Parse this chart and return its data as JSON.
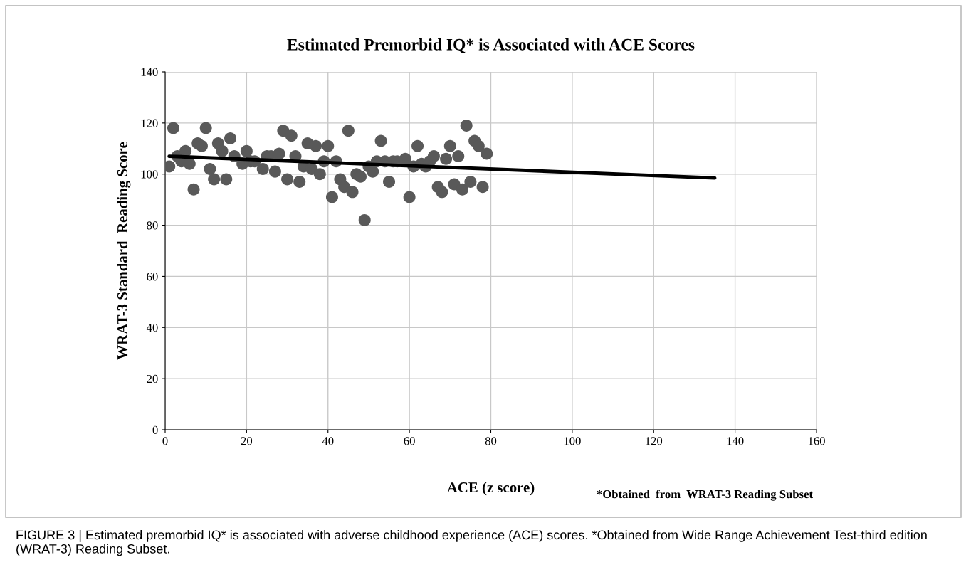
{
  "chart_data": {
    "type": "scatter",
    "title": "Estimated Premorbid IQ* is Associated with ACE Scores",
    "xlabel": "ACE (z score)",
    "ylabel": "WRAT-3 Standard  Reading Score",
    "annotations": [
      "*Obtained  from  WRAT-3 Reading Subset",
      "FIGURE 3 | Estimated premorbid IQ* is associated with adverse childhood experience (ACE) scores. *Obtained from Wide Range Achievement Test-third edition (WRAT-3) Reading Subset."
    ],
    "series": [
      {
        "color": "#595959",
        "marker": "circle",
        "x": [
          1,
          2,
          3,
          4,
          5,
          6,
          7,
          8,
          9,
          10,
          11,
          12,
          13,
          14,
          15,
          16,
          17,
          19,
          20,
          21,
          22,
          24,
          25,
          26,
          27,
          28,
          29,
          30,
          31,
          32,
          33,
          34,
          35,
          36,
          37,
          38,
          39,
          40,
          41,
          42,
          43,
          44,
          45,
          46,
          47,
          48,
          49,
          50,
          51,
          52,
          53,
          54,
          55,
          56,
          57,
          59,
          60,
          61,
          62,
          63,
          64,
          65,
          66,
          67,
          68,
          69,
          70,
          71,
          72,
          73,
          74,
          75,
          76,
          77,
          78,
          79
        ],
        "values": [
          103,
          118,
          107,
          105,
          109,
          104,
          94,
          112,
          111,
          118,
          102,
          98,
          112,
          109,
          98,
          114,
          107,
          104,
          109,
          105,
          105,
          102,
          107,
          107,
          101,
          108,
          117,
          98,
          115,
          107,
          97,
          103,
          112,
          102,
          111,
          100,
          105,
          111,
          91,
          105,
          98,
          95,
          117,
          93,
          100,
          99,
          82,
          103,
          101,
          105,
          113,
          105,
          97,
          105,
          105,
          106,
          91,
          103,
          111,
          104,
          103,
          105,
          107,
          95,
          93,
          106,
          111,
          96,
          107,
          94,
          119,
          97,
          113,
          111,
          95,
          108
        ]
      },
      {
        "type": "line",
        "color": "#000000",
        "marker": "none",
        "line_style": "solid",
        "x": [
          1,
          135
        ],
        "values": [
          107,
          98.5
        ]
      }
    ],
    "xlim": [
      0,
      160
    ],
    "xticks": [
      0,
      20,
      40,
      60,
      80,
      100,
      120,
      140,
      160
    ],
    "ylim": [
      0,
      140
    ],
    "yticks": [
      0,
      20,
      40,
      60,
      80,
      100,
      120,
      140
    ],
    "grid": true,
    "legend": false
  }
}
